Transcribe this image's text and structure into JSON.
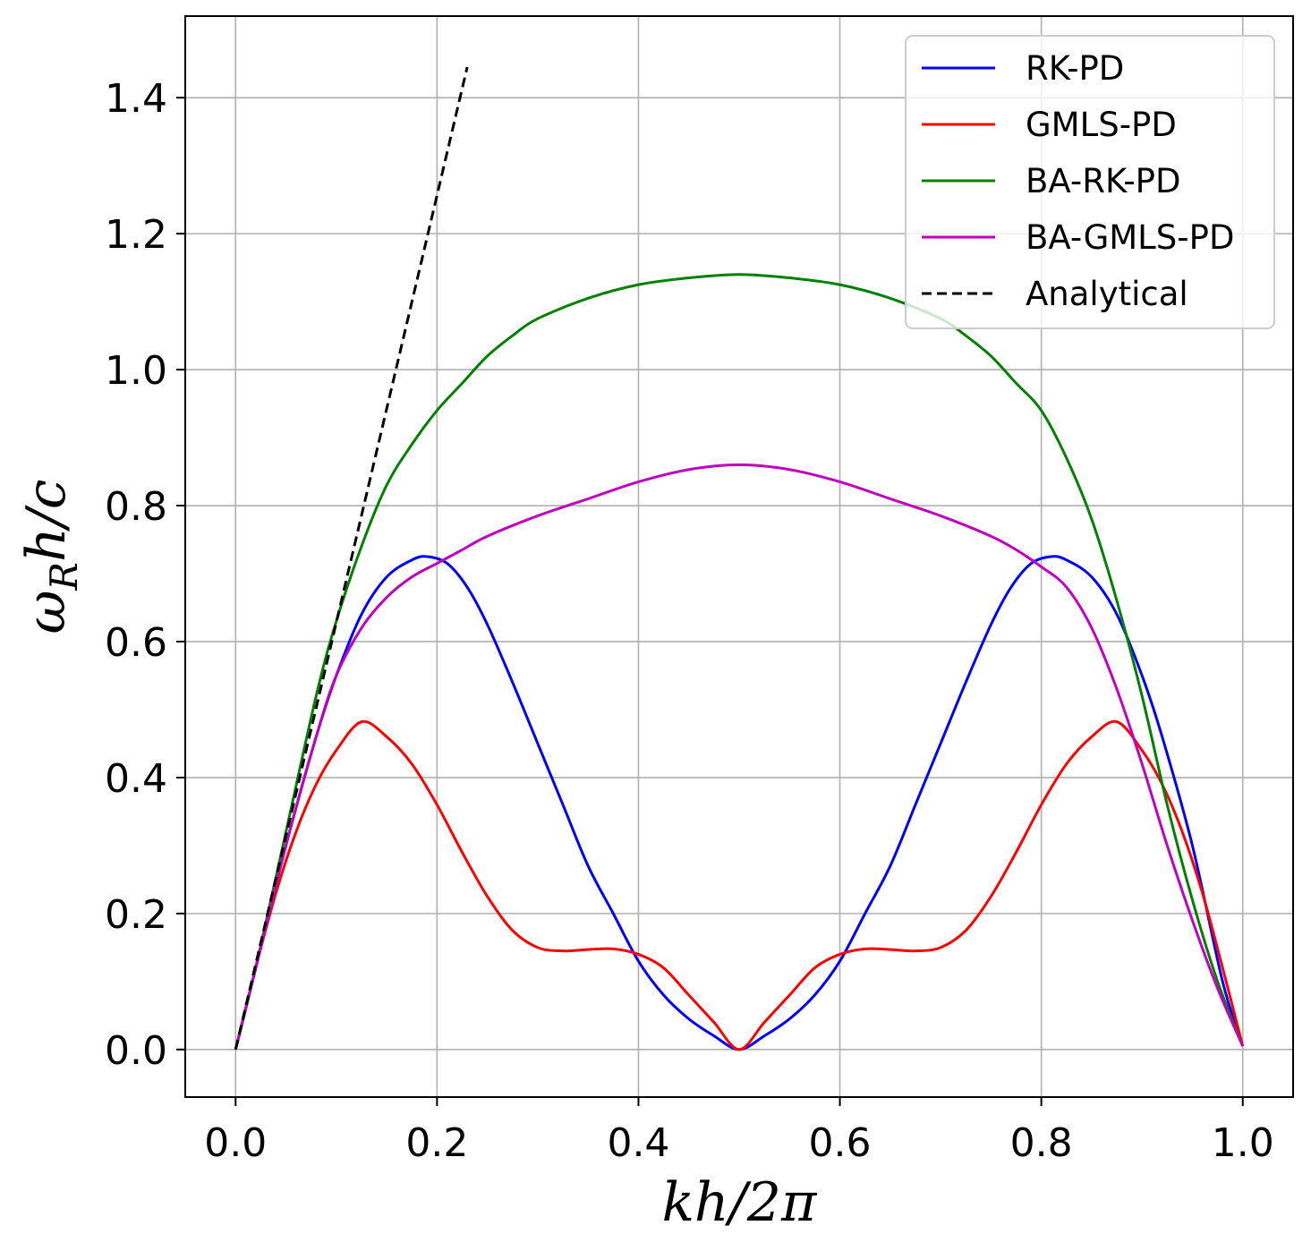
{
  "chart_data": {
    "type": "line",
    "xlabel": "kh/2π",
    "ylabel_main": "ω",
    "ylabel_sub": "R",
    "ylabel_rest": "h/c",
    "xlim": [
      -0.05,
      1.05
    ],
    "ylim": [
      -0.07,
      1.52
    ],
    "grid": true,
    "legend_position": "top-right",
    "x_ticks": [
      0.0,
      0.2,
      0.4,
      0.6,
      0.8,
      1.0
    ],
    "x_tick_labels": [
      "0.0",
      "0.2",
      "0.4",
      "0.6",
      "0.8",
      "1.0"
    ],
    "y_ticks": [
      0.0,
      0.2,
      0.4,
      0.6,
      0.8,
      1.0,
      1.2,
      1.4
    ],
    "y_tick_labels": [
      "0.0",
      "0.2",
      "0.4",
      "0.6",
      "0.8",
      "1.0",
      "1.2",
      "1.4"
    ],
    "series": [
      {
        "name": "RK-PD",
        "color": "#0000ff",
        "style": "solid",
        "x": [
          0,
          0.02,
          0.05,
          0.08,
          0.1,
          0.125,
          0.15,
          0.175,
          0.19,
          0.21,
          0.23,
          0.25,
          0.275,
          0.3,
          0.325,
          0.35,
          0.375,
          0.4,
          0.425,
          0.45,
          0.475,
          0.5,
          0.525,
          0.55,
          0.575,
          0.6,
          0.625,
          0.65,
          0.675,
          0.7,
          0.725,
          0.75,
          0.77,
          0.79,
          0.81,
          0.825,
          0.85,
          0.875,
          0.9,
          0.92,
          0.95,
          0.98,
          1.0
        ],
        "y": [
          0,
          0.12,
          0.3,
          0.46,
          0.55,
          0.64,
          0.695,
          0.72,
          0.725,
          0.715,
          0.68,
          0.625,
          0.54,
          0.45,
          0.36,
          0.27,
          0.2,
          0.13,
          0.08,
          0.045,
          0.02,
          0.0,
          0.02,
          0.045,
          0.08,
          0.13,
          0.2,
          0.27,
          0.36,
          0.45,
          0.54,
          0.625,
          0.68,
          0.715,
          0.725,
          0.72,
          0.695,
          0.64,
          0.55,
          0.46,
          0.3,
          0.1,
          0.005
        ]
      },
      {
        "name": "GMLS-PD",
        "color": "#ff0000",
        "style": "solid",
        "x": [
          0,
          0.02,
          0.04,
          0.06,
          0.08,
          0.1,
          0.125,
          0.15,
          0.175,
          0.2,
          0.225,
          0.25,
          0.275,
          0.3,
          0.325,
          0.35,
          0.375,
          0.4,
          0.425,
          0.45,
          0.475,
          0.5,
          0.525,
          0.55,
          0.575,
          0.6,
          0.625,
          0.65,
          0.675,
          0.7,
          0.725,
          0.75,
          0.775,
          0.8,
          0.825,
          0.85,
          0.875,
          0.9,
          0.92,
          0.94,
          0.96,
          0.98,
          1.0
        ],
        "y": [
          0,
          0.12,
          0.23,
          0.32,
          0.39,
          0.44,
          0.482,
          0.46,
          0.42,
          0.36,
          0.29,
          0.225,
          0.175,
          0.15,
          0.145,
          0.147,
          0.148,
          0.14,
          0.12,
          0.08,
          0.04,
          0.0,
          0.04,
          0.08,
          0.12,
          0.14,
          0.148,
          0.147,
          0.145,
          0.15,
          0.175,
          0.225,
          0.29,
          0.36,
          0.42,
          0.46,
          0.482,
          0.44,
          0.39,
          0.32,
          0.23,
          0.12,
          0.005
        ]
      },
      {
        "name": "BA-RK-PD",
        "color": "#008000",
        "style": "solid",
        "x": [
          0,
          0.02,
          0.05,
          0.08,
          0.1,
          0.125,
          0.15,
          0.175,
          0.2,
          0.225,
          0.25,
          0.275,
          0.3,
          0.35,
          0.4,
          0.45,
          0.5,
          0.55,
          0.6,
          0.65,
          0.7,
          0.725,
          0.75,
          0.775,
          0.8,
          0.825,
          0.85,
          0.875,
          0.9,
          0.925,
          0.95,
          0.975,
          1.0
        ],
        "y": [
          0,
          0.12,
          0.32,
          0.52,
          0.63,
          0.74,
          0.83,
          0.89,
          0.94,
          0.98,
          1.02,
          1.05,
          1.075,
          1.105,
          1.125,
          1.135,
          1.14,
          1.135,
          1.125,
          1.105,
          1.075,
          1.05,
          1.02,
          0.98,
          0.94,
          0.87,
          0.78,
          0.66,
          0.52,
          0.36,
          0.22,
          0.1,
          0.005
        ]
      },
      {
        "name": "BA-GMLS-PD",
        "color": "#bf00bf",
        "style": "solid",
        "x": [
          0,
          0.02,
          0.05,
          0.08,
          0.1,
          0.125,
          0.15,
          0.175,
          0.2,
          0.225,
          0.25,
          0.3,
          0.35,
          0.4,
          0.45,
          0.5,
          0.55,
          0.6,
          0.65,
          0.7,
          0.75,
          0.775,
          0.8,
          0.825,
          0.85,
          0.875,
          0.9,
          0.925,
          0.95,
          0.975,
          1.0
        ],
        "y": [
          0,
          0.12,
          0.3,
          0.46,
          0.55,
          0.62,
          0.665,
          0.695,
          0.715,
          0.735,
          0.755,
          0.785,
          0.81,
          0.835,
          0.853,
          0.86,
          0.853,
          0.835,
          0.81,
          0.785,
          0.755,
          0.735,
          0.71,
          0.68,
          0.62,
          0.53,
          0.42,
          0.3,
          0.19,
          0.09,
          0.005
        ]
      },
      {
        "name": "Analytical",
        "color": "#000000",
        "style": "dashed",
        "x": [
          0,
          0.23
        ],
        "y": [
          0,
          1.445
        ]
      }
    ]
  }
}
